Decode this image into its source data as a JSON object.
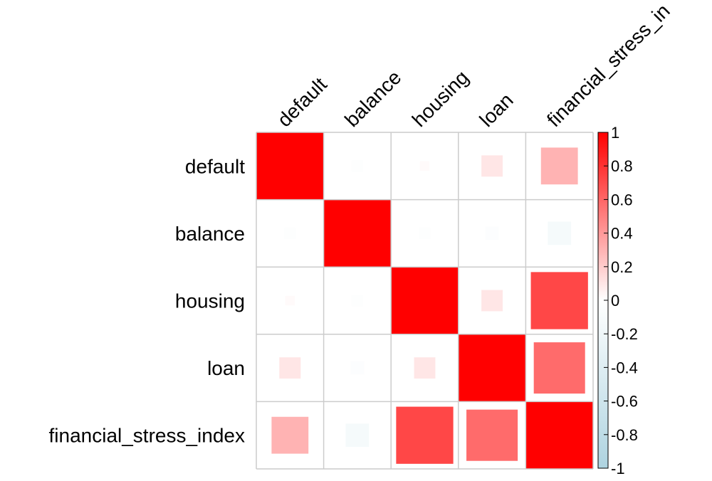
{
  "chart_data": {
    "type": "heatmap",
    "variables": [
      "default",
      "balance",
      "housing",
      "loan",
      "financial_stress_index"
    ],
    "column_labels": [
      "default",
      "balance",
      "housing",
      "loan",
      "financial_stress_in"
    ],
    "matrix": [
      [
        1.0,
        -0.03,
        0.02,
        0.1,
        0.3
      ],
      [
        -0.03,
        1.0,
        -0.03,
        -0.04,
        -0.12
      ],
      [
        0.02,
        -0.03,
        1.0,
        0.1,
        0.72
      ],
      [
        0.1,
        -0.04,
        0.1,
        1.0,
        0.58
      ],
      [
        0.3,
        -0.12,
        0.72,
        0.58,
        1.0
      ]
    ],
    "colorbar": {
      "ticks": [
        "-1",
        "-0.8",
        "-0.6",
        "-0.4",
        "-0.2",
        "0",
        "0.2",
        "0.4",
        "0.6",
        "0.8",
        "1"
      ],
      "range": [
        -1,
        1
      ]
    },
    "colors": {
      "positive": "#ff0000",
      "negative": "#aed3e0",
      "neutral": "#ffffff",
      "grid": "#cccccc"
    }
  }
}
